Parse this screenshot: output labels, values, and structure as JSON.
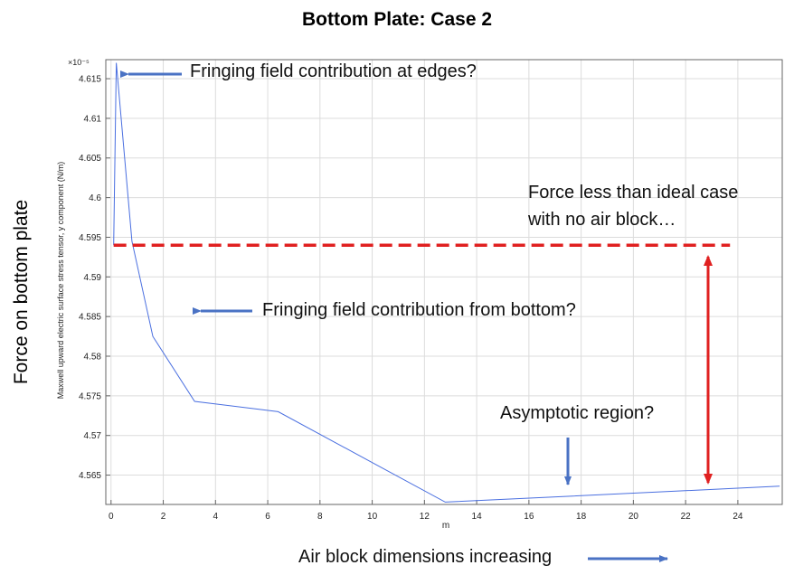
{
  "page_title": "Bottom Plate: Case 2",
  "side_label": "Force on bottom plate",
  "bottom_label": "Air block dimensions increasing",
  "chart_data": {
    "type": "line",
    "title": "Bottom Plate: Case 2",
    "xlabel": "m",
    "ylabel": "Maxwell upward electric surface stress tensor, y component (N/m)",
    "y_multiplier_label": "×10⁻⁵",
    "xlim": [
      -0.2,
      25.7
    ],
    "ylim": [
      4.5613,
      4.6174
    ],
    "x_ticks": [
      0,
      2,
      4,
      6,
      8,
      10,
      12,
      14,
      16,
      18,
      20,
      22,
      24
    ],
    "y_ticks": [
      4.565,
      4.57,
      4.575,
      4.58,
      4.585,
      4.59,
      4.595,
      4.6,
      4.605,
      4.61,
      4.615
    ],
    "grid": true,
    "series": [
      {
        "name": "Force",
        "color": "#4a6fe0",
        "x": [
          0.1,
          0.2,
          0.8,
          1.6,
          3.2,
          6.4,
          12.8,
          25.6
        ],
        "y": [
          4.594,
          4.617,
          4.5945,
          4.5825,
          4.5743,
          4.573,
          4.5616,
          4.5636
        ]
      }
    ],
    "reference_line": {
      "y": 4.594,
      "x_start": 0.1,
      "x_end": 23.7,
      "color": "#e02020",
      "style": "dashed"
    },
    "annotations": [
      "Fringing field contribution at edges?",
      "Fringing field contribution from bottom?",
      "Force less than ideal case with no air block…",
      "Asymptotic region?"
    ]
  },
  "colors": {
    "arrow_blue": "#4a72c4",
    "arrow_red": "#e02020",
    "line_blue": "#4a6fe0"
  }
}
